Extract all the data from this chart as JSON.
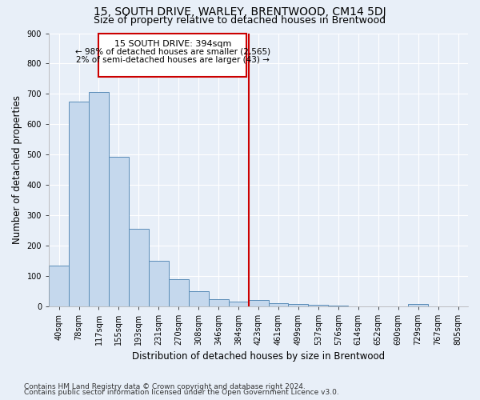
{
  "title": "15, SOUTH DRIVE, WARLEY, BRENTWOOD, CM14 5DJ",
  "subtitle": "Size of property relative to detached houses in Brentwood",
  "xlabel": "Distribution of detached houses by size in Brentwood",
  "ylabel": "Number of detached properties",
  "bin_labels": [
    "40sqm",
    "78sqm",
    "117sqm",
    "155sqm",
    "193sqm",
    "231sqm",
    "270sqm",
    "308sqm",
    "346sqm",
    "384sqm",
    "423sqm",
    "461sqm",
    "499sqm",
    "537sqm",
    "576sqm",
    "614sqm",
    "652sqm",
    "690sqm",
    "729sqm",
    "767sqm",
    "805sqm"
  ],
  "bar_heights": [
    135,
    675,
    705,
    492,
    255,
    150,
    88,
    50,
    22,
    15,
    20,
    10,
    8,
    5,
    2,
    0,
    0,
    0,
    8,
    0,
    0
  ],
  "bar_color": "#c5d8ed",
  "bar_edge_color": "#5b8db8",
  "vline_color": "#cc0000",
  "annotation_title": "15 SOUTH DRIVE: 394sqm",
  "annotation_line1": "← 98% of detached houses are smaller (2,565)",
  "annotation_line2": "2% of semi-detached houses are larger (43) →",
  "annotation_box_color": "#cc0000",
  "ylim": [
    0,
    900
  ],
  "yticks": [
    0,
    100,
    200,
    300,
    400,
    500,
    600,
    700,
    800,
    900
  ],
  "footer_line1": "Contains HM Land Registry data © Crown copyright and database right 2024.",
  "footer_line2": "Contains public sector information licensed under the Open Government Licence v3.0.",
  "bg_color": "#e8eff8",
  "grid_color": "#ffffff",
  "title_fontsize": 10,
  "subtitle_fontsize": 9,
  "axis_label_fontsize": 8.5,
  "tick_fontsize": 7,
  "footer_fontsize": 6.5
}
